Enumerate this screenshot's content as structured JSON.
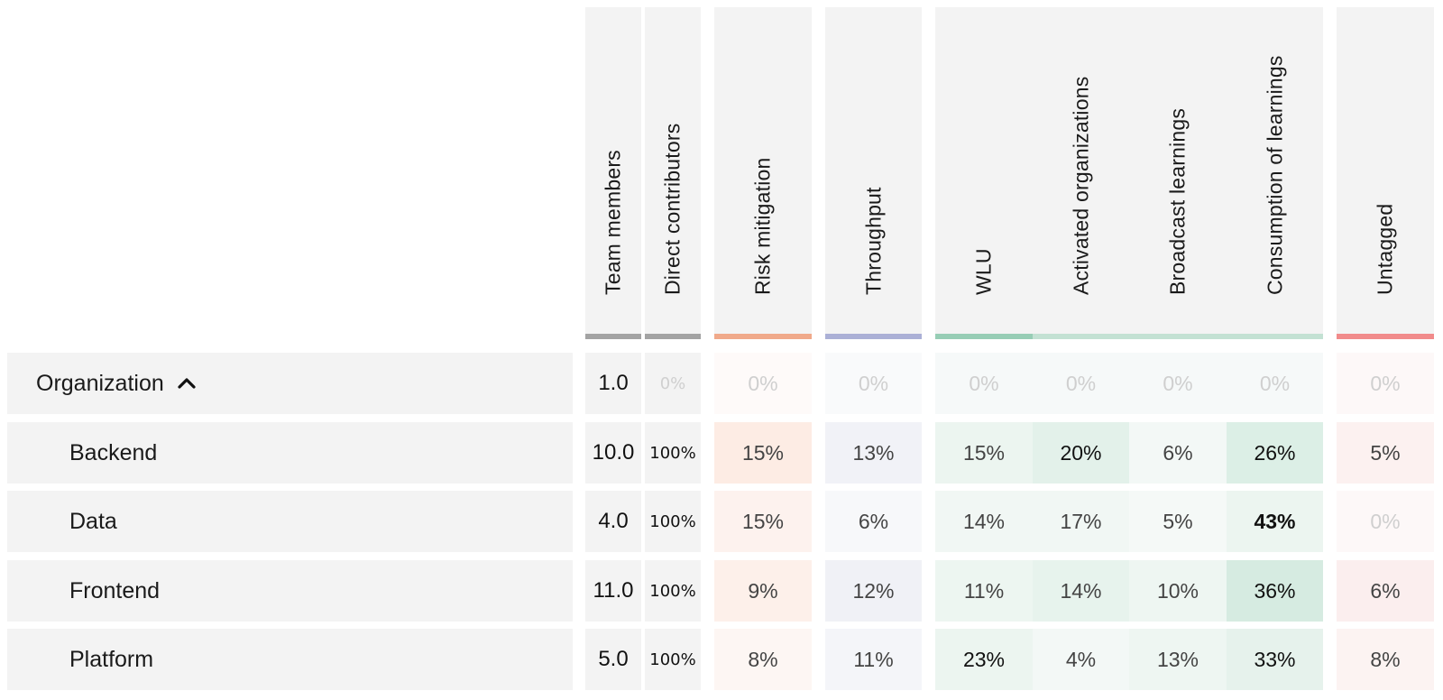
{
  "headers": [
    {
      "label": "Team members",
      "bar": "#a3a3a3"
    },
    {
      "label": "Direct contributors",
      "bar": "#a3a3a3"
    },
    {
      "label": "Risk mitigation",
      "bar": "#f0a98a"
    },
    {
      "label": "Throughput",
      "bar": "#abb0d6"
    },
    {
      "label": "WLU",
      "bar": "#97cdb5"
    },
    {
      "label": "Activated organizations",
      "bar": "#c3e1d3"
    },
    {
      "label": "Broadcast learnings",
      "bar": "#c3e1d3"
    },
    {
      "label": "Consumption of learnings",
      "bar": "#c3e1d3"
    },
    {
      "label": "Untagged",
      "bar": "#f18b8b"
    }
  ],
  "rows": [
    {
      "name": "Organization",
      "expanded": true,
      "indent": false,
      "cells": [
        "1.0",
        "0%",
        "0%",
        "0%",
        "0%",
        "0%",
        "0%",
        "0%",
        "0%"
      ],
      "bg": [
        "#f3f3f3",
        "#f3f3f3",
        "#fefaf9",
        "#f9fafb",
        "#f6f9f9",
        "#f6f9f9",
        "#f6f9f9",
        "#f6f9f9",
        "#fdf8f8"
      ],
      "style": [
        "num",
        "mono zero",
        "zero",
        "zero",
        "zero",
        "zero",
        "zero",
        "zero",
        "zero"
      ]
    },
    {
      "name": "Backend",
      "indent": true,
      "cells": [
        "10.0",
        "100%",
        "15%",
        "13%",
        "15%",
        "20%",
        "6%",
        "26%",
        "5%"
      ],
      "bg": [
        "#f3f3f3",
        "#f3f3f3",
        "#fdece4",
        "#f1f2f7",
        "#ecf5f0",
        "#e3f1ea",
        "#f3f8f6",
        "#dcefe6",
        "#fcf1f0"
      ],
      "style": [
        "num",
        "mono",
        "",
        "",
        "",
        "semi",
        "",
        "semi",
        ""
      ]
    },
    {
      "name": "Data",
      "indent": true,
      "cells": [
        "4.0",
        "100%",
        "15%",
        "6%",
        "14%",
        "17%",
        "5%",
        "43%",
        "0%"
      ],
      "bg": [
        "#f3f3f3",
        "#f3f3f3",
        "#fdf2ee",
        "#f7f8fa",
        "#f1f7f4",
        "#f1f7f4",
        "#f5f9f7",
        "#ecf5f0",
        "#fdf8f8"
      ],
      "style": [
        "num",
        "mono",
        "",
        "",
        "",
        "",
        "",
        "bold",
        "zero"
      ]
    },
    {
      "name": "Frontend",
      "indent": true,
      "cells": [
        "11.0",
        "100%",
        "9%",
        "12%",
        "11%",
        "14%",
        "10%",
        "36%",
        "6%"
      ],
      "bg": [
        "#f3f3f3",
        "#f3f3f3",
        "#fdf0ea",
        "#f0f1f6",
        "#edf6f1",
        "#e7f3ed",
        "#eef6f2",
        "#d6ebe1",
        "#fbeeee"
      ],
      "style": [
        "num",
        "mono",
        "",
        "",
        "",
        "",
        "",
        "semi",
        ""
      ]
    },
    {
      "name": "Platform",
      "indent": true,
      "cells": [
        "5.0",
        "100%",
        "8%",
        "11%",
        "23%",
        "4%",
        "13%",
        "33%",
        "8%"
      ],
      "bg": [
        "#f3f3f3",
        "#f3f3f3",
        "#fdf6f3",
        "#f4f5f9",
        "#ecf5f0",
        "#f3f8f6",
        "#eef6f2",
        "#e6f2ec",
        "#fcf3f2"
      ],
      "style": [
        "num",
        "mono",
        "",
        "",
        "semi",
        "",
        "",
        "semi",
        ""
      ]
    }
  ]
}
